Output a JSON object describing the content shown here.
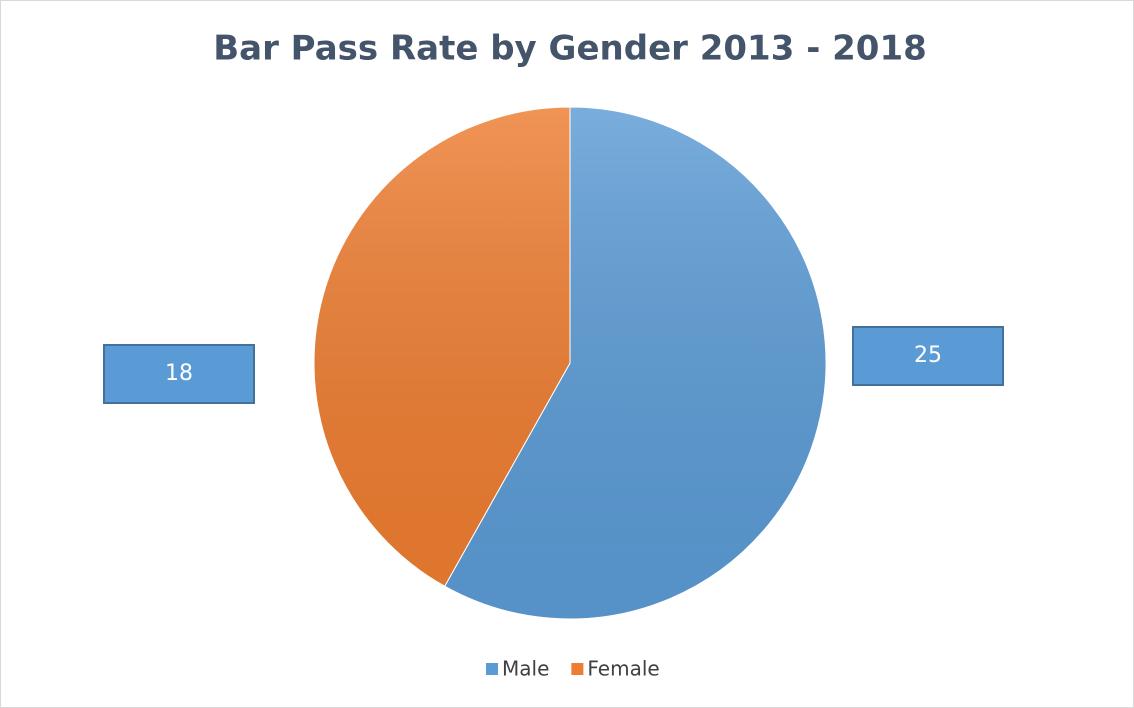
{
  "chart_data": {
    "type": "pie",
    "title": "Bar Pass Rate by Gender 2013 - 2018",
    "categories": [
      "Male",
      "Female"
    ],
    "values": [
      25,
      18
    ],
    "colors": [
      "#5b9bd5",
      "#ed7d31"
    ],
    "legend": "bottom"
  }
}
